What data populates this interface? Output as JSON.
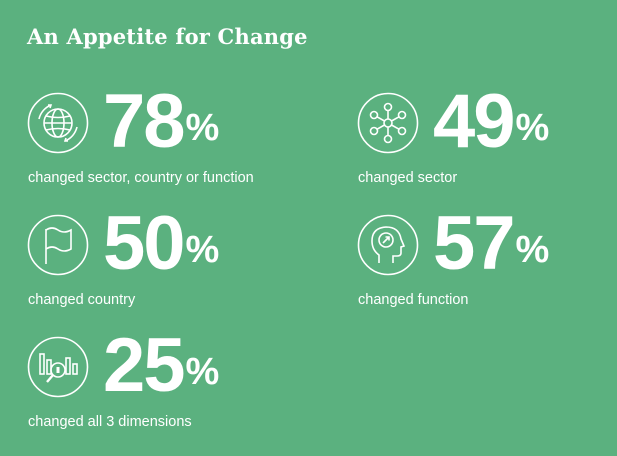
{
  "title": "An Appetite for Change",
  "stats": [
    {
      "value": "78",
      "unit": "%",
      "label": "changed sector, country or function",
      "icon": "globe-icon"
    },
    {
      "value": "49",
      "unit": "%",
      "label": "changed sector",
      "icon": "network-icon"
    },
    {
      "value": "50",
      "unit": "%",
      "label": "changed country",
      "icon": "flag-icon"
    },
    {
      "value": "57",
      "unit": "%",
      "label": "changed function",
      "icon": "head-icon"
    },
    {
      "value": "25",
      "unit": "%",
      "label": "changed all 3 dimensions",
      "icon": "analytics-icon"
    }
  ],
  "colors": {
    "background": "#5bb17f",
    "foreground": "#ffffff"
  }
}
